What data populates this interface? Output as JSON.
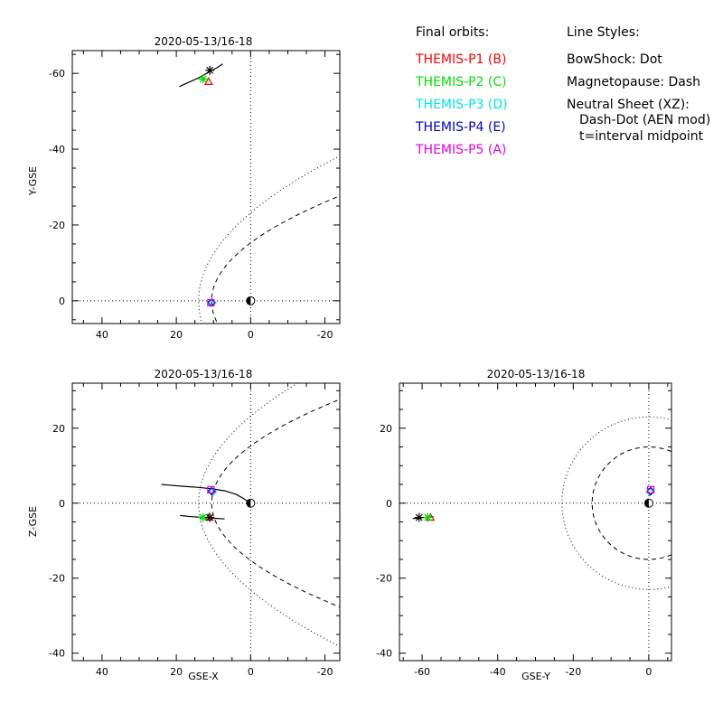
{
  "legend": {
    "orbits_title": "Final orbits:",
    "probes": [
      {
        "label": "THEMIS-P1 (B)",
        "color": "#ff0000"
      },
      {
        "label": "THEMIS-P2 (C)",
        "color": "#00e000"
      },
      {
        "label": "THEMIS-P3 (D)",
        "color": "#00e5e5"
      },
      {
        "label": "THEMIS-P4 (E)",
        "color": "#0000c8"
      },
      {
        "label": "THEMIS-P5 (A)",
        "color": "#e000e0"
      }
    ],
    "styles_title": "Line Styles:",
    "styles": [
      "BowShock: Dot",
      "Magnetopause: Dash",
      "Neutral Sheet (XZ):",
      "Dash-Dot (AEN mod)",
      "t=interval midpoint"
    ]
  },
  "chart_data": [
    {
      "type": "scatter",
      "title": "2020-05-13/16-18",
      "xlabel": "",
      "ylabel": "Y-GSE",
      "xlim": [
        48,
        -24
      ],
      "ylim": [
        6,
        -66
      ],
      "xticks": [
        40,
        20,
        0,
        -20
      ],
      "yticks": [
        -60,
        -40,
        -20,
        0
      ],
      "earth": [
        0,
        0
      ],
      "bowshock_dir": -1,
      "magnetopause_dir": -1,
      "series": [
        {
          "name": "THEMIS-P1 (B)",
          "color": "#ff0000",
          "marker": "triangle",
          "x": 11.3,
          "y": -57.8
        },
        {
          "name": "THEMIS-P2 (C)",
          "color": "#00e000",
          "marker": "star",
          "x": 12.8,
          "y": -58.5
        },
        {
          "name": "THEMIS-P3 (D)",
          "color": "#00e5e5",
          "marker": "diamond",
          "x": 10.3,
          "y": 0.5
        },
        {
          "name": "THEMIS-P4 (E)",
          "color": "#0000c8",
          "marker": "diamond",
          "x": 10.6,
          "y": 0.5
        },
        {
          "name": "THEMIS-P5 (A)",
          "color": "#e000e0",
          "marker": "square",
          "x": 10.7,
          "y": 0.5
        }
      ],
      "tracks": [
        {
          "points": [
            [
              7.5,
              -62.5
            ],
            [
              9,
              -61.5
            ],
            [
              11,
              -60.5
            ],
            [
              14,
              -58.8
            ],
            [
              17,
              -57.5
            ],
            [
              19.2,
              -56.5
            ]
          ]
        }
      ],
      "midpoint": {
        "x": 11,
        "y": -60.8
      }
    },
    {
      "type": "scatter",
      "title": "2020-05-13/16-18",
      "xlabel": "GSE-X",
      "ylabel": "Z-GSE",
      "xlim": [
        48,
        -24
      ],
      "ylim": [
        -42,
        32
      ],
      "xticks": [
        40,
        20,
        0,
        -20
      ],
      "yticks": [
        -40,
        -20,
        0,
        20
      ],
      "earth": [
        0,
        0
      ],
      "bowshock_dir": 1,
      "magnetopause_dir": 1,
      "series": [
        {
          "name": "THEMIS-P1 (B)",
          "color": "#ff0000",
          "marker": "triangle",
          "x": 11.2,
          "y": -3.8
        },
        {
          "name": "THEMIS-P2 (C)",
          "color": "#00e000",
          "marker": "star",
          "x": 12.8,
          "y": -3.8
        },
        {
          "name": "THEMIS-P3 (D)",
          "color": "#00e5e5",
          "marker": "diamond",
          "x": 10.2,
          "y": 3.0
        },
        {
          "name": "THEMIS-P4 (E)",
          "color": "#0000c8",
          "marker": "diamond",
          "x": 10.5,
          "y": 3.2
        },
        {
          "name": "THEMIS-P5 (A)",
          "color": "#e000e0",
          "marker": "square",
          "x": 10.7,
          "y": 3.6
        }
      ],
      "tracks": [
        {
          "points": [
            [
              0,
              0
            ],
            [
              2,
              1.3
            ],
            [
              4,
              2.4
            ],
            [
              7,
              3.3
            ],
            [
              10,
              3.8
            ],
            [
              14,
              4.2
            ],
            [
              18,
              4.5
            ],
            [
              22,
              4.8
            ],
            [
              24,
              5.0
            ]
          ]
        },
        {
          "points": [
            [
              7,
              -4.2
            ],
            [
              10,
              -4.0
            ],
            [
              13,
              -3.8
            ],
            [
              16,
              -3.6
            ],
            [
              19,
              -3.3
            ]
          ]
        }
      ],
      "midpoint": {
        "x": 11,
        "y": -3.8
      }
    },
    {
      "type": "scatter",
      "title": "2020-05-13/16-18",
      "xlabel": "GSE-Y",
      "ylabel": "",
      "xlim": [
        -66,
        6
      ],
      "ylim": [
        -42,
        32
      ],
      "xticks": [
        -60,
        -40,
        -20,
        0
      ],
      "yticks": [
        -40,
        -20,
        0,
        20
      ],
      "earth": [
        0,
        0
      ],
      "circles": [
        {
          "r": 23,
          "style": "dot"
        },
        {
          "r": 15,
          "style": "dash"
        }
      ],
      "series": [
        {
          "name": "THEMIS-P1 (B)",
          "color": "#ff0000",
          "marker": "triangle",
          "x": -57.8,
          "y": -3.8
        },
        {
          "name": "THEMIS-P2 (C)",
          "color": "#00e000",
          "marker": "star",
          "x": -58.5,
          "y": -3.8
        },
        {
          "name": "THEMIS-P3 (D)",
          "color": "#00e5e5",
          "marker": "diamond",
          "x": 0.3,
          "y": 3.0
        },
        {
          "name": "THEMIS-P4 (E)",
          "color": "#0000c8",
          "marker": "diamond",
          "x": 0.5,
          "y": 3.2
        },
        {
          "name": "THEMIS-P5 (A)",
          "color": "#e000e0",
          "marker": "square",
          "x": 0.5,
          "y": 3.6
        }
      ],
      "tracks": [
        {
          "points": [
            [
              -62.5,
              -4.1
            ],
            [
              -61.5,
              -4.0
            ],
            [
              -60.5,
              -3.9
            ],
            [
              -59,
              -3.8
            ],
            [
              -57,
              -3.6
            ]
          ]
        }
      ],
      "midpoint": {
        "x": -60.8,
        "y": -3.8
      }
    }
  ]
}
